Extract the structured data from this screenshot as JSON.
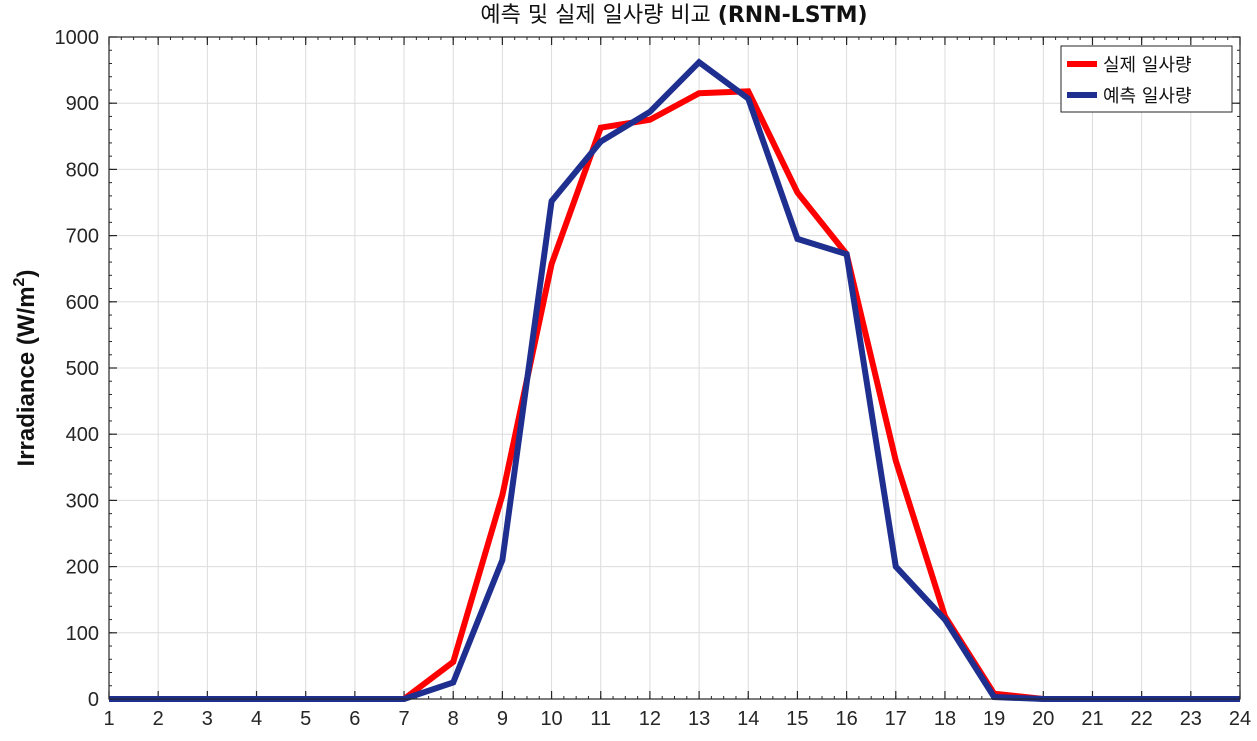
{
  "chart_data": {
    "type": "line",
    "title": "예측 및 실제 일사량 비교 (RNN-LSTM)",
    "title_bold_part": "(RNN-LSTM)",
    "title_plain_part": "예측 및 실제 일사량 비교 ",
    "xlabel": "",
    "ylabel": "Irradiance (W/m",
    "ylabel_sup": "2",
    "ylabel_close": ")",
    "x": [
      1,
      2,
      3,
      4,
      5,
      6,
      7,
      8,
      9,
      10,
      11,
      12,
      13,
      14,
      15,
      16,
      17,
      18,
      19,
      20,
      21,
      22,
      23,
      24
    ],
    "xlim": [
      1,
      24
    ],
    "ylim": [
      0,
      1000
    ],
    "xticks": [
      1,
      2,
      3,
      4,
      5,
      6,
      7,
      8,
      9,
      10,
      11,
      12,
      13,
      14,
      15,
      16,
      17,
      18,
      19,
      20,
      21,
      22,
      23,
      24
    ],
    "yticks": [
      0,
      100,
      200,
      300,
      400,
      500,
      600,
      700,
      800,
      900,
      1000
    ],
    "grid": true,
    "legend_position": "top-right",
    "series": [
      {
        "name": "실제 일사량",
        "color": "#ff0000",
        "values": [
          0,
          0,
          0,
          0,
          0,
          0,
          0,
          56,
          308,
          657,
          863,
          875,
          915,
          918,
          765,
          672,
          360,
          125,
          8,
          0,
          0,
          0,
          0,
          0
        ]
      },
      {
        "name": "예측 일사량",
        "color": "#1f2f8f",
        "values": [
          0,
          0,
          0,
          0,
          0,
          0,
          0,
          25,
          210,
          752,
          842,
          887,
          962,
          907,
          695,
          672,
          200,
          120,
          3,
          0,
          0,
          0,
          0,
          0
        ]
      }
    ]
  }
}
